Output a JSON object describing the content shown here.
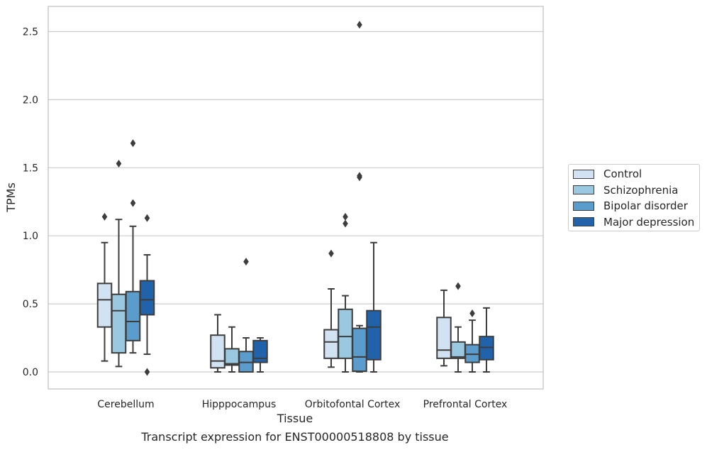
{
  "chart_data": {
    "type": "box",
    "title": "",
    "caption": "Transcript expression for ENST00000518808 by tissue",
    "xlabel": "Tissue",
    "ylabel": "TPMs",
    "ylim": [
      -0.12,
      2.68
    ],
    "yticks": [
      "0.0",
      "0.5",
      "1.0",
      "1.5",
      "2.0",
      "2.5"
    ],
    "ytick_values": [
      0,
      0.5,
      1.0,
      1.5,
      2.0,
      2.5
    ],
    "grid": "horizontal",
    "legend_position": "right",
    "categories": [
      "Cerebellum",
      "Hipppocampus",
      "Orbitofontal Cortex",
      "Prefrontal Cortex"
    ],
    "series": [
      {
        "name": "Control",
        "color": "#d1e2f2",
        "boxes": [
          {
            "whislo": 0.08,
            "q1": 0.33,
            "med": 0.53,
            "q3": 0.65,
            "whishi": 0.95,
            "fliers": [
              1.14
            ]
          },
          {
            "whislo": 0.0,
            "q1": 0.03,
            "med": 0.08,
            "q3": 0.27,
            "whishi": 0.42,
            "fliers": []
          },
          {
            "whislo": 0.035,
            "q1": 0.1,
            "med": 0.22,
            "q3": 0.31,
            "whishi": 0.61,
            "fliers": [
              0.87
            ]
          },
          {
            "whislo": 0.045,
            "q1": 0.1,
            "med": 0.16,
            "q3": 0.4,
            "whishi": 0.6,
            "fliers": []
          }
        ]
      },
      {
        "name": "Schizophrenia",
        "color": "#9ac8e0",
        "boxes": [
          {
            "whislo": 0.04,
            "q1": 0.14,
            "med": 0.45,
            "q3": 0.57,
            "whishi": 1.12,
            "fliers": [
              1.53
            ]
          },
          {
            "whislo": 0.0,
            "q1": 0.05,
            "med": 0.06,
            "q3": 0.17,
            "whishi": 0.33,
            "fliers": []
          },
          {
            "whislo": 0.0,
            "q1": 0.1,
            "med": 0.26,
            "q3": 0.46,
            "whishi": 0.56,
            "fliers": [
              1.09,
              1.14
            ]
          },
          {
            "whislo": 0.0,
            "q1": 0.1,
            "med": 0.11,
            "q3": 0.22,
            "whishi": 0.33,
            "fliers": [
              0.63
            ]
          }
        ]
      },
      {
        "name": "Bipolar disorder",
        "color": "#5a9ccc",
        "boxes": [
          {
            "whislo": 0.14,
            "q1": 0.23,
            "med": 0.37,
            "q3": 0.59,
            "whishi": 1.07,
            "fliers": [
              1.24,
              1.68
            ]
          },
          {
            "whislo": 0.0,
            "q1": 0.0,
            "med": 0.07,
            "q3": 0.15,
            "whishi": 0.25,
            "fliers": [
              0.81
            ]
          },
          {
            "whislo": 0.0,
            "q1": 0.005,
            "med": 0.11,
            "q3": 0.32,
            "whishi": 0.34,
            "fliers": [
              1.43,
              1.44,
              2.55
            ]
          },
          {
            "whislo": 0.0,
            "q1": 0.07,
            "med": 0.13,
            "q3": 0.2,
            "whishi": 0.38,
            "fliers": [
              0.43
            ]
          }
        ]
      },
      {
        "name": "Major depression",
        "color": "#2163aa",
        "boxes": [
          {
            "whislo": 0.13,
            "q1": 0.42,
            "med": 0.53,
            "q3": 0.67,
            "whishi": 0.86,
            "fliers": [
              1.13,
              0.0
            ]
          },
          {
            "whislo": 0.0,
            "q1": 0.07,
            "med": 0.1,
            "q3": 0.23,
            "whishi": 0.25,
            "fliers": []
          },
          {
            "whislo": 0.0,
            "q1": 0.09,
            "med": 0.33,
            "q3": 0.45,
            "whishi": 0.95,
            "fliers": []
          },
          {
            "whislo": 0.0,
            "q1": 0.09,
            "med": 0.18,
            "q3": 0.26,
            "whishi": 0.47,
            "fliers": []
          }
        ]
      }
    ]
  }
}
